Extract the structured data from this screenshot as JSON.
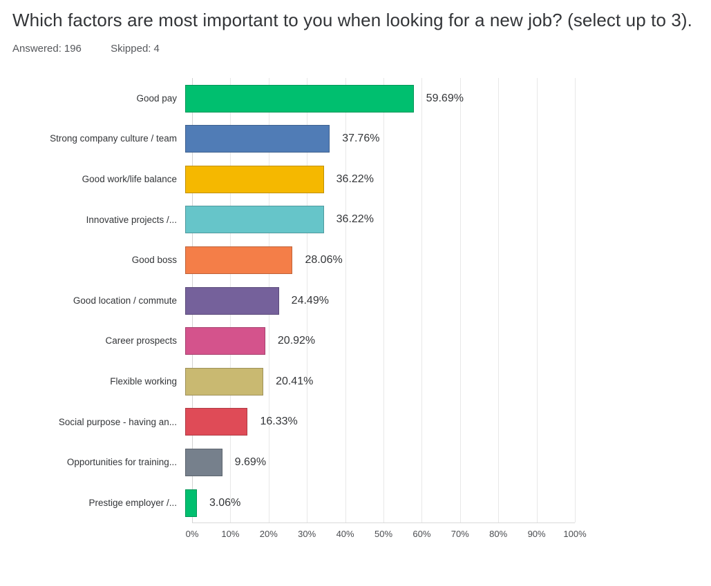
{
  "header": {
    "title": "Which factors are most important to you when looking for a new job? (select up to 3).",
    "answered_label": "Answered:",
    "answered_value": "196",
    "skipped_label": "Skipped:",
    "skipped_value": "4"
  },
  "chart_data": {
    "type": "bar",
    "orientation": "horizontal",
    "title": "Which factors are most important to you when looking for a new job? (select up to 3).",
    "xlabel": "",
    "ylabel": "",
    "xlim": [
      0,
      100
    ],
    "grid": true,
    "categories": [
      "Good pay",
      "Strong company culture / team",
      "Good work/life balance",
      "Innovative projects /...",
      "Good boss",
      "Good location / commute",
      "Career prospects",
      "Flexible working",
      "Social purpose - having an...",
      "Opportunities for training...",
      "Prestige employer /..."
    ],
    "values": [
      59.69,
      37.76,
      36.22,
      36.22,
      28.06,
      24.49,
      20.92,
      20.41,
      16.33,
      9.69,
      3.06
    ],
    "value_labels": [
      "59.69%",
      "37.76%",
      "36.22%",
      "36.22%",
      "28.06%",
      "24.49%",
      "20.92%",
      "20.41%",
      "16.33%",
      "9.69%",
      "3.06%"
    ],
    "bar_colors": [
      "#00bf6f",
      "#507cb6",
      "#f5b800",
      "#66c5c9",
      "#f47e48",
      "#75619b",
      "#d4538c",
      "#c9b971",
      "#df4b57",
      "#76808c",
      "#00bf6f"
    ],
    "x_ticks": [
      "0%",
      "10%",
      "20%",
      "30%",
      "40%",
      "50%",
      "60%",
      "70%",
      "80%",
      "90%",
      "100%"
    ]
  }
}
